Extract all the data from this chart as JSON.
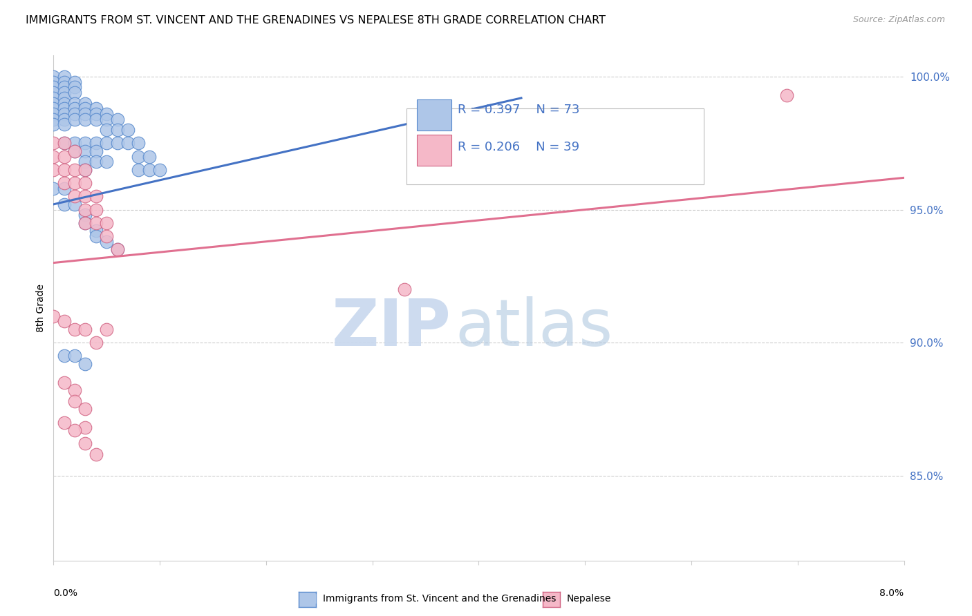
{
  "title": "IMMIGRANTS FROM ST. VINCENT AND THE GRENADINES VS NEPALESE 8TH GRADE CORRELATION CHART",
  "source": "Source: ZipAtlas.com",
  "ylabel": "8th Grade",
  "legend_r1": "R = 0.397",
  "legend_n1": "N = 73",
  "legend_r2": "R = 0.206",
  "legend_n2": "N = 39",
  "blue_fill": "#aec6e8",
  "blue_edge": "#5588cc",
  "pink_fill": "#f5b8c8",
  "pink_edge": "#d06080",
  "blue_line": "#4472C4",
  "pink_line": "#e07090",
  "x_min": 0.0,
  "x_max": 0.08,
  "y_min": 0.818,
  "y_max": 1.008,
  "y_ticks": [
    0.85,
    0.9,
    0.95,
    1.0
  ],
  "y_tick_labels": [
    "85.0%",
    "90.0%",
    "95.0%",
    "100.0%"
  ],
  "blue_line_x": [
    0.0,
    0.044
  ],
  "blue_line_y": [
    0.952,
    0.992
  ],
  "pink_line_x": [
    0.0,
    0.08
  ],
  "pink_line_y": [
    0.93,
    0.962
  ],
  "blue_x": [
    0.0,
    0.0,
    0.0,
    0.0,
    0.0,
    0.0,
    0.0,
    0.0,
    0.0,
    0.0,
    0.001,
    0.001,
    0.001,
    0.001,
    0.001,
    0.001,
    0.001,
    0.001,
    0.001,
    0.001,
    0.001,
    0.002,
    0.002,
    0.002,
    0.002,
    0.002,
    0.002,
    0.002,
    0.002,
    0.002,
    0.003,
    0.003,
    0.003,
    0.003,
    0.003,
    0.003,
    0.003,
    0.003,
    0.004,
    0.004,
    0.004,
    0.004,
    0.004,
    0.004,
    0.005,
    0.005,
    0.005,
    0.005,
    0.005,
    0.006,
    0.006,
    0.006,
    0.007,
    0.007,
    0.008,
    0.008,
    0.008,
    0.009,
    0.009,
    0.01,
    0.0,
    0.001,
    0.001,
    0.002,
    0.003,
    0.003,
    0.004,
    0.004,
    0.005,
    0.006,
    0.001,
    0.002,
    0.003
  ],
  "blue_y": [
    1.0,
    0.998,
    0.996,
    0.994,
    0.992,
    0.99,
    0.988,
    0.986,
    0.984,
    0.982,
    1.0,
    0.998,
    0.996,
    0.994,
    0.992,
    0.99,
    0.988,
    0.986,
    0.984,
    0.982,
    0.975,
    0.998,
    0.996,
    0.994,
    0.99,
    0.988,
    0.986,
    0.984,
    0.975,
    0.972,
    0.99,
    0.988,
    0.986,
    0.984,
    0.975,
    0.972,
    0.968,
    0.965,
    0.988,
    0.986,
    0.984,
    0.975,
    0.972,
    0.968,
    0.986,
    0.984,
    0.98,
    0.975,
    0.968,
    0.984,
    0.98,
    0.975,
    0.98,
    0.975,
    0.975,
    0.97,
    0.965,
    0.97,
    0.965,
    0.965,
    0.958,
    0.958,
    0.952,
    0.952,
    0.948,
    0.945,
    0.942,
    0.94,
    0.938,
    0.935,
    0.895,
    0.895,
    0.892
  ],
  "pink_x": [
    0.0,
    0.0,
    0.0,
    0.001,
    0.001,
    0.001,
    0.001,
    0.002,
    0.002,
    0.002,
    0.002,
    0.003,
    0.003,
    0.003,
    0.003,
    0.003,
    0.004,
    0.004,
    0.004,
    0.005,
    0.005,
    0.006,
    0.0,
    0.001,
    0.002,
    0.003,
    0.004,
    0.005,
    0.001,
    0.002,
    0.002,
    0.003,
    0.003,
    0.001,
    0.002,
    0.003,
    0.004,
    0.069,
    0.033
  ],
  "pink_y": [
    0.975,
    0.97,
    0.965,
    0.975,
    0.97,
    0.965,
    0.96,
    0.972,
    0.965,
    0.96,
    0.955,
    0.965,
    0.96,
    0.955,
    0.95,
    0.945,
    0.955,
    0.95,
    0.945,
    0.945,
    0.94,
    0.935,
    0.91,
    0.908,
    0.905,
    0.905,
    0.9,
    0.905,
    0.885,
    0.882,
    0.878,
    0.875,
    0.868,
    0.87,
    0.867,
    0.862,
    0.858,
    0.993,
    0.92
  ],
  "watermark_zip": "ZIP",
  "watermark_atlas": "atlas",
  "grid_color": "#cccccc",
  "axis_color": "#cccccc"
}
